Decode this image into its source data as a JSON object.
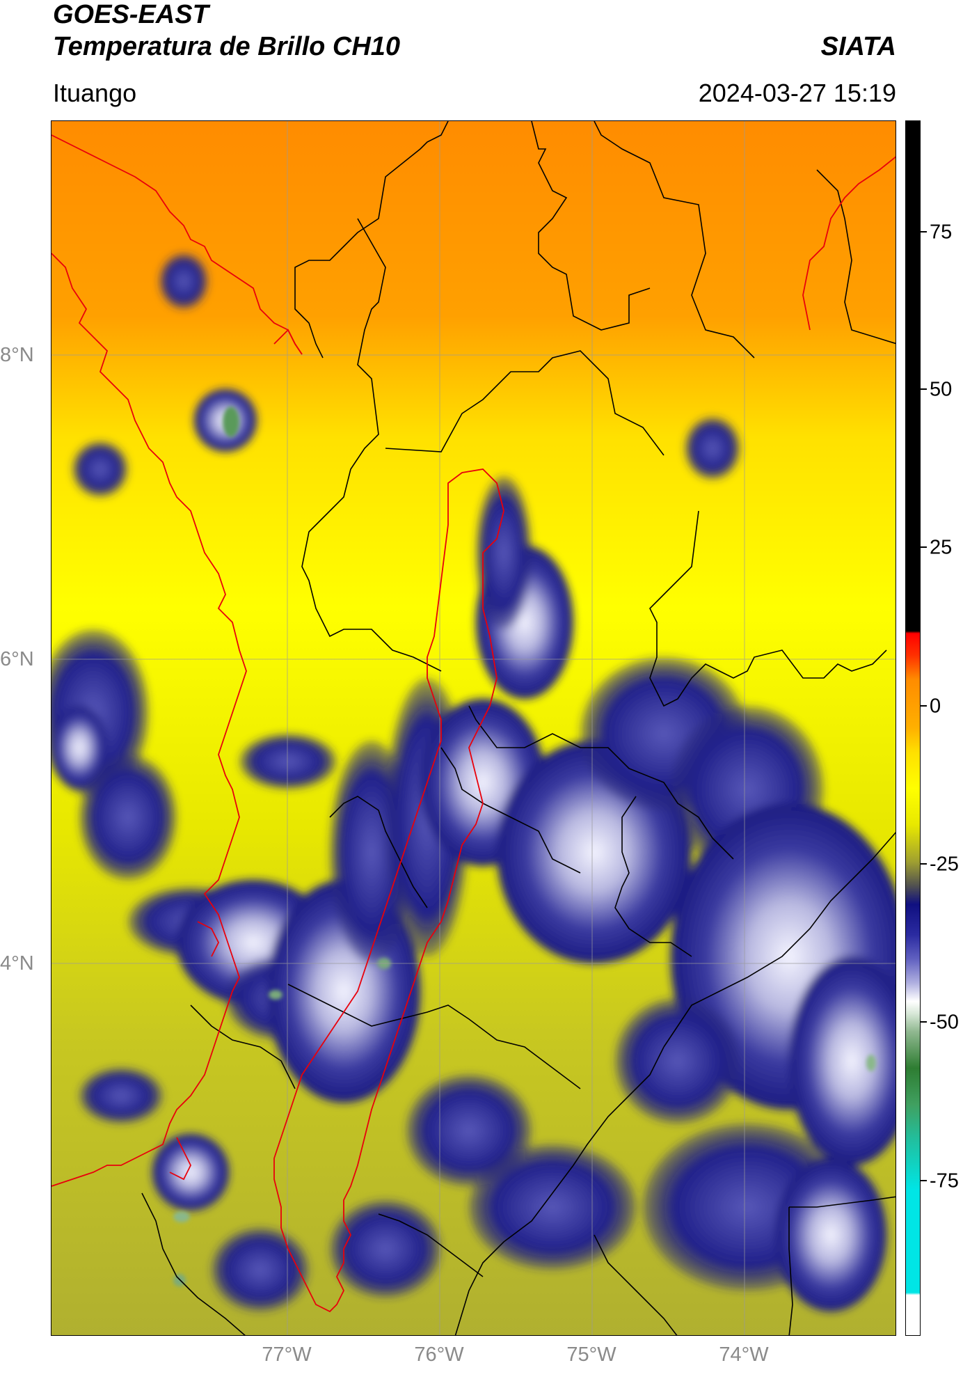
{
  "header": {
    "title_line1": "GOES-EAST",
    "title_line2": "Temperatura de Brillo CH10",
    "brand": "SIATA",
    "subtitle": "Ituango",
    "datetime": "2024-03-27 15:19"
  },
  "map": {
    "lat_labels": [
      "8°N",
      "6°N",
      "4°N"
    ],
    "lon_labels": [
      "77°W",
      "76°W",
      "75°W",
      "74°W"
    ],
    "extent": {
      "lon_min": -78.5,
      "lon_max": -73.0,
      "lat_min": 1.5,
      "lat_max": 9.5
    },
    "border_colors": {
      "country_outline": "#e8000b",
      "departments": "#000000",
      "gridlines": "#9a9a9a"
    }
  },
  "colorbar": {
    "ticks": [
      "75",
      "50",
      "25",
      "0",
      "-25",
      "-50",
      "-75"
    ],
    "range": [
      -90,
      90
    ],
    "colors": {
      "very_warm": "#000000",
      "hot": "#ff0000",
      "warm": "#ff8c00",
      "mild": "#ffff00",
      "olive": "#a0a030",
      "cold": "#101080",
      "very_cold": "#ffffff",
      "coldest_green": "#2e7d32",
      "coldest_cyan": "#00e5e5"
    }
  }
}
